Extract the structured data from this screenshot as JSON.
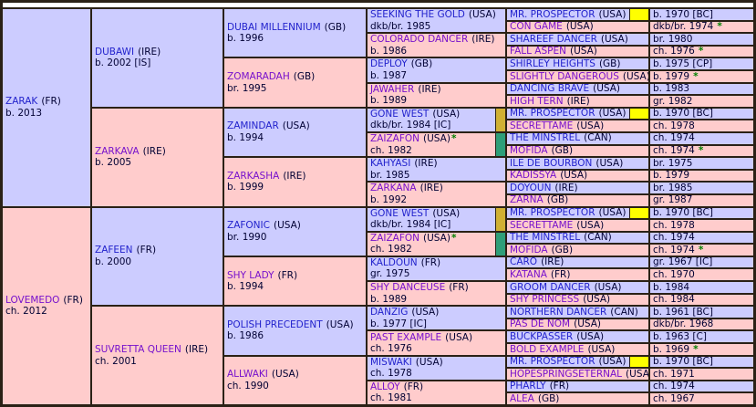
{
  "colors": {
    "male_bg": "#ccccff",
    "female_bg": "#ffcccc",
    "male_link": "#2222cc",
    "female_link": "#7711cc",
    "text": "#000033",
    "border": "#2a2116",
    "duplicate_highlight": "#ffff00",
    "duplicate_bar_gold": "#d0b033",
    "duplicate_bar_green": "#2e9e78",
    "star": "#008000"
  },
  "pedigree": {
    "generations": [
      {
        "cells": [
          {
            "sex": "m",
            "name": "ZARAK",
            "suffix": "(FR)",
            "details": "b. 2013"
          },
          {
            "sex": "f",
            "name": "LOVEMEDO",
            "suffix": "(FR)",
            "details": "ch. 2012"
          }
        ]
      },
      {
        "cells": [
          {
            "sex": "m",
            "name": "DUBAWI",
            "suffix": "(IRE)",
            "details": "b. 2002 [IS]"
          },
          {
            "sex": "f",
            "name": "ZARKAVA",
            "suffix": "(IRE)",
            "details": "b. 2005"
          },
          {
            "sex": "m",
            "name": "ZAFEEN",
            "suffix": "(FR)",
            "details": "b. 2000"
          },
          {
            "sex": "f",
            "name": "SUVRETTA QUEEN",
            "suffix": "(IRE)",
            "details": "ch. 2001"
          }
        ]
      },
      {
        "cells": [
          {
            "sex": "m",
            "name": "DUBAI MILLENNIUM",
            "suffix": "(GB)",
            "details": "b. 1996"
          },
          {
            "sex": "f",
            "name": "ZOMARADAH",
            "suffix": "(GB)",
            "details": "br. 1995"
          },
          {
            "sex": "m",
            "name": "ZAMINDAR",
            "suffix": "(USA)",
            "details": "b. 1994"
          },
          {
            "sex": "f",
            "name": "ZARKASHA",
            "suffix": "(IRE)",
            "details": "b. 1999"
          },
          {
            "sex": "m",
            "name": "ZAFONIC",
            "suffix": "(USA)",
            "details": "br. 1990"
          },
          {
            "sex": "f",
            "name": "SHY LADY",
            "suffix": "(FR)",
            "details": "b. 1994"
          },
          {
            "sex": "m",
            "name": "POLISH PRECEDENT",
            "suffix": "(USA)",
            "details": "b. 1986"
          },
          {
            "sex": "f",
            "name": "ALLWAKI",
            "suffix": "(USA)",
            "details": "ch. 1990"
          }
        ]
      },
      {
        "cells": [
          {
            "sex": "m",
            "name": "SEEKING THE GOLD",
            "suffix": "(USA)",
            "details": "dkb/br. 1985"
          },
          {
            "sex": "f",
            "name": "COLORADO DANCER",
            "suffix": "(IRE)",
            "details": "b. 1986"
          },
          {
            "sex": "m",
            "name": "DEPLOY",
            "suffix": "(GB)",
            "details": "b. 1987"
          },
          {
            "sex": "f",
            "name": "JAWAHER",
            "suffix": "(IRE)",
            "details": "b. 1989"
          },
          {
            "sex": "m",
            "name": "GONE WEST",
            "suffix": "(USA)",
            "details": "dkb/br. 1984 [IC]",
            "bar": "gold"
          },
          {
            "sex": "f",
            "name": "ZAIZAFON",
            "suffix": "(USA)",
            "name_star": "*",
            "details": "ch. 1982",
            "bar": "green"
          },
          {
            "sex": "m",
            "name": "KAHYASI",
            "suffix": "(IRE)",
            "details": "br. 1985"
          },
          {
            "sex": "f",
            "name": "ZARKANA",
            "suffix": "(IRE)",
            "details": "b. 1992"
          },
          {
            "sex": "m",
            "name": "GONE WEST",
            "suffix": "(USA)",
            "details": "dkb/br. 1984 [IC]",
            "bar": "gold"
          },
          {
            "sex": "f",
            "name": "ZAIZAFON",
            "suffix": "(USA)",
            "name_star": "*",
            "details": "ch. 1982",
            "bar": "green"
          },
          {
            "sex": "m",
            "name": "KALDOUN",
            "suffix": "(FR)",
            "details": "gr. 1975"
          },
          {
            "sex": "f",
            "name": "SHY DANCEUSE",
            "suffix": "(FR)",
            "details": "b. 1989"
          },
          {
            "sex": "m",
            "name": "DANZIG",
            "suffix": "(USA)",
            "details": "b. 1977 [IC]"
          },
          {
            "sex": "f",
            "name": "PAST EXAMPLE",
            "suffix": "(USA)",
            "details": "ch. 1976"
          },
          {
            "sex": "m",
            "name": "MISWAKI",
            "suffix": "(USA)",
            "details": "ch. 1978"
          },
          {
            "sex": "f",
            "name": "ALLOY",
            "suffix": "(FR)",
            "details": "ch. 1981"
          }
        ]
      },
      {
        "cells": [
          {
            "sex": "m",
            "name": "MR. PROSPECTOR",
            "suffix": "(USA)",
            "details": "b. 1970 [BC]",
            "highlight": true
          },
          {
            "sex": "f",
            "name": "CON GAME",
            "suffix": "(USA)",
            "details": "dkb/br. 1974",
            "details_star": "*"
          },
          {
            "sex": "m",
            "name": "SHAREEF DANCER",
            "suffix": "(USA)",
            "details": "br. 1980"
          },
          {
            "sex": "f",
            "name": "FALL ASPEN",
            "suffix": "(USA)",
            "details": "ch. 1976",
            "details_star": "*"
          },
          {
            "sex": "m",
            "name": "SHIRLEY HEIGHTS",
            "suffix": "(GB)",
            "details": "b. 1975 [CP]"
          },
          {
            "sex": "f",
            "name": "SLIGHTLY DANGEROUS",
            "suffix": "(USA)",
            "details": "b. 1979",
            "details_star": "*"
          },
          {
            "sex": "m",
            "name": "DANCING BRAVE",
            "suffix": "(USA)",
            "details": "b. 1983"
          },
          {
            "sex": "f",
            "name": "HIGH TERN",
            "suffix": "(IRE)",
            "details": "gr. 1982"
          },
          {
            "sex": "m",
            "name": "MR. PROSPECTOR",
            "suffix": "(USA)",
            "details": "b. 1970 [BC]",
            "highlight": true
          },
          {
            "sex": "f",
            "name": "SECRETTAME",
            "suffix": "(USA)",
            "details": "ch. 1978"
          },
          {
            "sex": "m",
            "name": "THE MINSTREL",
            "suffix": "(CAN)",
            "details": "ch. 1974"
          },
          {
            "sex": "f",
            "name": "MOFIDA",
            "suffix": "(GB)",
            "details": "ch. 1974",
            "details_star": "*"
          },
          {
            "sex": "m",
            "name": "ILE DE BOURBON",
            "suffix": "(USA)",
            "details": "br. 1975"
          },
          {
            "sex": "f",
            "name": "KADISSYA",
            "suffix": "(USA)",
            "details": "b. 1979"
          },
          {
            "sex": "m",
            "name": "DOYOUN",
            "suffix": "(IRE)",
            "details": "br. 1985"
          },
          {
            "sex": "f",
            "name": "ZARNA",
            "suffix": "(GB)",
            "details": "gr. 1987"
          },
          {
            "sex": "m",
            "name": "MR. PROSPECTOR",
            "suffix": "(USA)",
            "details": "b. 1970 [BC]",
            "highlight": true
          },
          {
            "sex": "f",
            "name": "SECRETTAME",
            "suffix": "(USA)",
            "details": "ch. 1978"
          },
          {
            "sex": "m",
            "name": "THE MINSTREL",
            "suffix": "(CAN)",
            "details": "ch. 1974"
          },
          {
            "sex": "f",
            "name": "MOFIDA",
            "suffix": "(GB)",
            "details": "ch. 1974",
            "details_star": "*"
          },
          {
            "sex": "m",
            "name": "CARO",
            "suffix": "(IRE)",
            "details": "gr. 1967 [IC]"
          },
          {
            "sex": "f",
            "name": "KATANA",
            "suffix": "(FR)",
            "details": "ch. 1970"
          },
          {
            "sex": "m",
            "name": "GROOM DANCER",
            "suffix": "(USA)",
            "details": "b. 1984"
          },
          {
            "sex": "f",
            "name": "SHY PRINCESS",
            "suffix": "(USA)",
            "details": "ch. 1984"
          },
          {
            "sex": "m",
            "name": "NORTHERN DANCER",
            "suffix": "(CAN)",
            "details": "b. 1961 [BC]"
          },
          {
            "sex": "f",
            "name": "PAS DE NOM",
            "suffix": "(USA)",
            "details": "dkb/br. 1968"
          },
          {
            "sex": "m",
            "name": "BUCKPASSER",
            "suffix": "(USA)",
            "details": "b. 1963 [C]"
          },
          {
            "sex": "f",
            "name": "BOLD EXAMPLE",
            "suffix": "(USA)",
            "details": "b. 1969",
            "details_star": "*"
          },
          {
            "sex": "m",
            "name": "MR. PROSPECTOR",
            "suffix": "(USA)",
            "details": "b. 1970 [BC]",
            "highlight": true
          },
          {
            "sex": "f",
            "name": "HOPESPRINGSETERNAL",
            "suffix": "(USA)",
            "details": "ch. 1971"
          },
          {
            "sex": "m",
            "name": "PHARLY",
            "suffix": "(FR)",
            "details": "ch. 1974"
          },
          {
            "sex": "f",
            "name": "ALEA",
            "suffix": "(GB)",
            "details": "ch. 1967"
          }
        ]
      }
    ]
  }
}
